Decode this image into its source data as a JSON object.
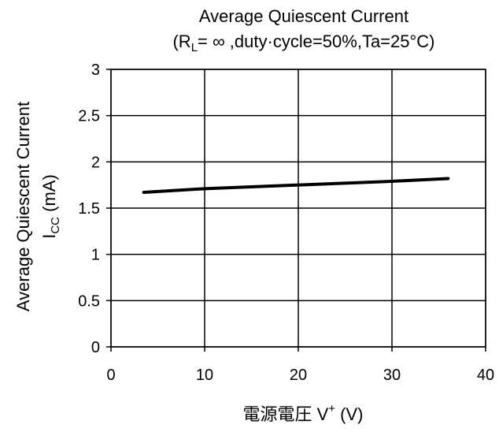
{
  "chart_data": {
    "type": "line",
    "title": "Average Quiescent Current",
    "subtitle": {
      "prefix": "(R",
      "subscript": "L",
      "suffix": "= ∞ ,duty·cycle=50%,Ta=25°C)"
    },
    "ylabel": {
      "line1": "Average Quiescent Current",
      "line2_prefix": "I",
      "line2_subscript": "CC",
      "line2_suffix": " (mA)"
    },
    "xlabel": {
      "prefix": "電源電圧  V",
      "superscript": "+",
      "suffix": "  (V)"
    },
    "xlim": [
      0,
      40
    ],
    "ylim": [
      0,
      3
    ],
    "xticks": [
      0,
      10,
      20,
      30,
      40
    ],
    "yticks": [
      0,
      0.5,
      1,
      1.5,
      2,
      2.5,
      3
    ],
    "xtick_labels": [
      "0",
      "10",
      "20",
      "30",
      "40"
    ],
    "ytick_labels": [
      "0",
      "0.5",
      "1",
      "1.5",
      "2",
      "2.5",
      "3"
    ],
    "grid": true,
    "series": [
      {
        "x": [
          3.5,
          10,
          20,
          30,
          36
        ],
        "y": [
          1.67,
          1.71,
          1.75,
          1.79,
          1.82
        ],
        "color": "#000000"
      }
    ]
  }
}
